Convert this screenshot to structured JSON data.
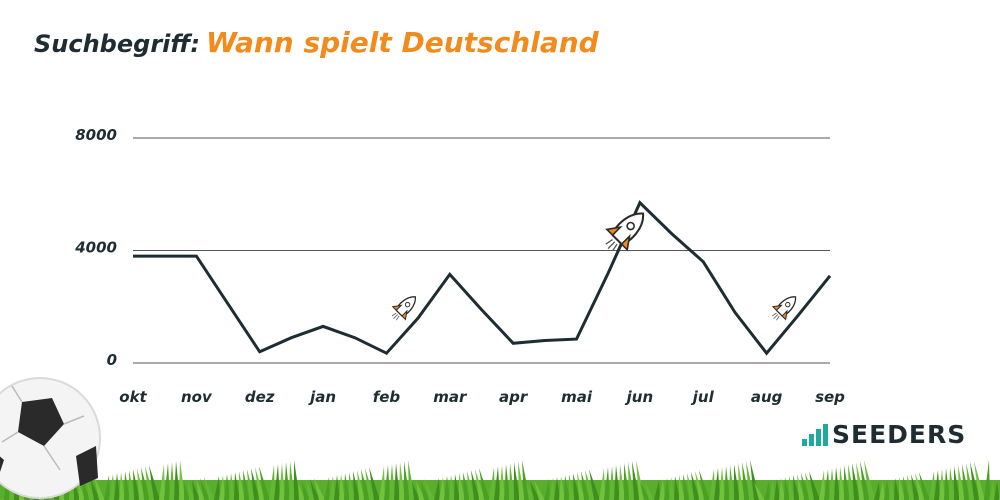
{
  "header": {
    "label": "Suchbegriff:",
    "term": "Wann spielt Deutschland"
  },
  "chart_data": {
    "type": "line",
    "categories": [
      "okt",
      "nov",
      "dez",
      "jan",
      "feb",
      "mar",
      "apr",
      "mai",
      "jun",
      "jul",
      "aug",
      "sep"
    ],
    "x": [
      "okt",
      "",
      "nov",
      "",
      "dez",
      "",
      "jan",
      "",
      "feb",
      "",
      "mar",
      "",
      "apr",
      "",
      "mai",
      "",
      "jun",
      "",
      "jul",
      "",
      "aug",
      "",
      "sep"
    ],
    "values": [
      3800,
      3800,
      3800,
      2100,
      400,
      900,
      1300,
      900,
      350,
      1600,
      3150,
      1900,
      700,
      800,
      850,
      3200,
      5700,
      4600,
      3600,
      1800,
      350,
      1700,
      3100
    ],
    "yticks": [
      0,
      4000,
      8000
    ],
    "ylim": [
      0,
      8000
    ],
    "grid": true,
    "line_color": "#1f2d33",
    "rockets": [
      {
        "name": "rocket-icon-feb",
        "x_index": 8.6,
        "y": 2000,
        "size": 1
      },
      {
        "name": "rocket-icon-mai-jun",
        "x_index": 15.6,
        "y": 4750,
        "size": 1.6
      },
      {
        "name": "rocket-icon-aug",
        "x_index": 20.6,
        "y": 2000,
        "size": 1
      }
    ]
  },
  "brand": {
    "name": "SEEDERS",
    "accent": "#1faaa0",
    "title_accent": "#f28a1c"
  }
}
